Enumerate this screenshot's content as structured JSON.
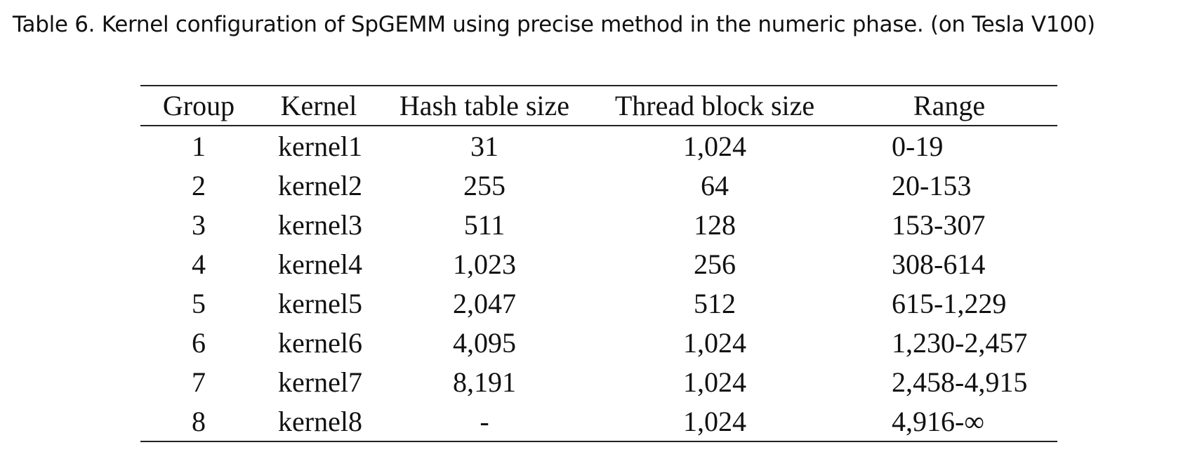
{
  "caption": "Table 6.  Kernel configuration of SpGEMM using precise method in the numeric phase. (on Tesla V100)",
  "headers": {
    "group": "Group",
    "kernel": "Kernel",
    "hash_table_size": "Hash table size",
    "thread_block_size": "Thread block size",
    "range": "Range"
  },
  "rows": [
    {
      "group": "1",
      "kernel": "kernel1",
      "hash": "31",
      "thread": "1,024",
      "range": "0-19"
    },
    {
      "group": "2",
      "kernel": "kernel2",
      "hash": "255",
      "thread": "64",
      "range": "20-153"
    },
    {
      "group": "3",
      "kernel": "kernel3",
      "hash": "511",
      "thread": "128",
      "range": "153-307"
    },
    {
      "group": "4",
      "kernel": "kernel4",
      "hash": "1,023",
      "thread": "256",
      "range": "308-614"
    },
    {
      "group": "5",
      "kernel": "kernel5",
      "hash": "2,047",
      "thread": "512",
      "range": "615-1,229"
    },
    {
      "group": "6",
      "kernel": "kernel6",
      "hash": "4,095",
      "thread": "1,024",
      "range": "1,230-2,457"
    },
    {
      "group": "7",
      "kernel": "kernel7",
      "hash": "8,191",
      "thread": "1,024",
      "range": "2,458-4,915"
    },
    {
      "group": "8",
      "kernel": "kernel8",
      "hash": "-",
      "thread": "1,024",
      "range": "4,916-∞"
    }
  ]
}
